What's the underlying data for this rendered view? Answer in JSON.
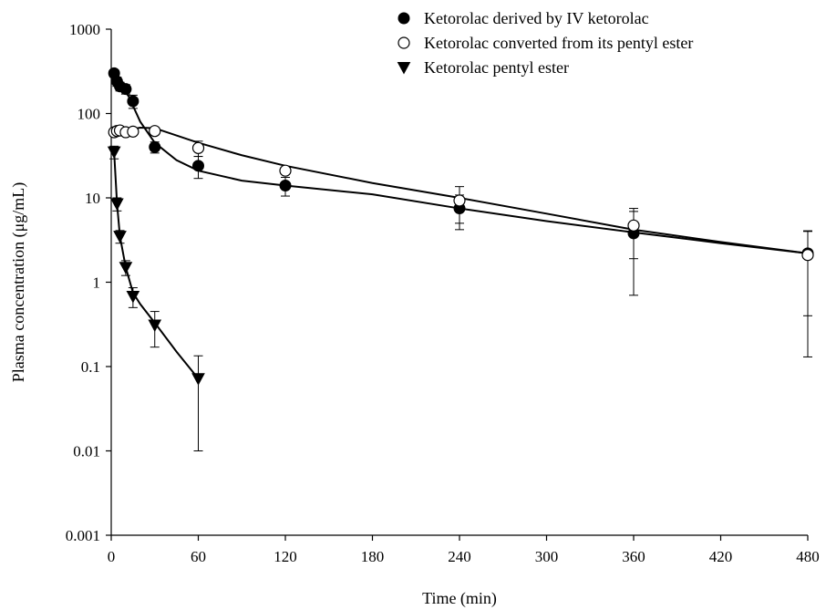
{
  "chart_data": {
    "type": "scatter",
    "xlabel": "Time (min)",
    "ylabel": "Plasma concentration (μg/mL)",
    "x_ticks": [
      0,
      60,
      120,
      180,
      240,
      300,
      360,
      420,
      480
    ],
    "y_ticks": [
      0.001,
      0.01,
      0.1,
      1,
      10,
      100,
      1000
    ],
    "y_tick_labels": [
      "0.001",
      "0.01",
      "0.1",
      "1",
      "10",
      "100",
      "1000"
    ],
    "xlim": [
      0,
      480
    ],
    "ylim": [
      0.001,
      1000
    ],
    "y_scale": "log",
    "grid": false,
    "legend_position": "top-right",
    "series": [
      {
        "name": "Ketorolac derived by IV ketorolac",
        "marker": "filled-circle",
        "color": "#000000",
        "points": [
          {
            "x": 2,
            "y": 300,
            "err": 30
          },
          {
            "x": 4,
            "y": 240,
            "err": 30
          },
          {
            "x": 6,
            "y": 210,
            "err": 25
          },
          {
            "x": 10,
            "y": 195,
            "err": 25
          },
          {
            "x": 15,
            "y": 140,
            "err": 25
          },
          {
            "x": 30,
            "y": 40,
            "err": 6
          },
          {
            "x": 60,
            "y": 24,
            "err": 7
          },
          {
            "x": 120,
            "y": 14,
            "err": 3.5
          },
          {
            "x": 240,
            "y": 7.5,
            "err": 3.3
          },
          {
            "x": 360,
            "y": 3.8,
            "err": 3.1
          },
          {
            "x": 480,
            "y": 2.2,
            "err": 1.8
          }
        ],
        "curve": [
          [
            2,
            300
          ],
          [
            6,
            220
          ],
          [
            12,
            160
          ],
          [
            20,
            80
          ],
          [
            30,
            45
          ],
          [
            45,
            28
          ],
          [
            60,
            21
          ],
          [
            90,
            16
          ],
          [
            120,
            14
          ],
          [
            180,
            11
          ],
          [
            240,
            7.5
          ],
          [
            300,
            5.3
          ],
          [
            360,
            3.9
          ],
          [
            420,
            2.9
          ],
          [
            480,
            2.2
          ]
        ]
      },
      {
        "name": "Ketorolac converted from its pentyl ester",
        "marker": "open-circle",
        "color": "#000000",
        "points": [
          {
            "x": 2,
            "y": 60,
            "err": 4
          },
          {
            "x": 4,
            "y": 62,
            "err": 4
          },
          {
            "x": 6,
            "y": 63,
            "err": 4
          },
          {
            "x": 10,
            "y": 60,
            "err": 4
          },
          {
            "x": 15,
            "y": 61,
            "err": 4
          },
          {
            "x": 30,
            "y": 62,
            "err": 6
          },
          {
            "x": 60,
            "y": 39,
            "err": 8
          },
          {
            "x": 120,
            "y": 21,
            "err": 2
          },
          {
            "x": 240,
            "y": 9.3,
            "err": 4.3
          },
          {
            "x": 360,
            "y": 4.7,
            "err": 2.8
          },
          {
            "x": 480,
            "y": 2.1,
            "err": 1.97
          }
        ],
        "curve": [
          [
            2,
            60
          ],
          [
            10,
            63
          ],
          [
            20,
            68
          ],
          [
            30,
            67
          ],
          [
            60,
            45
          ],
          [
            90,
            32
          ],
          [
            120,
            24
          ],
          [
            180,
            15
          ],
          [
            240,
            10
          ],
          [
            300,
            6.5
          ],
          [
            360,
            4.2
          ],
          [
            420,
            3
          ],
          [
            480,
            2.2
          ]
        ]
      },
      {
        "name": "Ketorolac pentyl ester",
        "marker": "filled-triangle-down",
        "color": "#000000",
        "points": [
          {
            "x": 2,
            "y": 35,
            "err": 6
          },
          {
            "x": 4,
            "y": 8.5,
            "err": 1.5
          },
          {
            "x": 6,
            "y": 3.5,
            "err": 0.6
          },
          {
            "x": 10,
            "y": 1.5,
            "err": 0.3
          },
          {
            "x": 15,
            "y": 0.68,
            "err": 0.18
          },
          {
            "x": 30,
            "y": 0.31,
            "err": 0.14
          },
          {
            "x": 60,
            "y": 0.072,
            "err": 0.062
          }
        ],
        "curve": [
          [
            2,
            35
          ],
          [
            4,
            8.5
          ],
          [
            6,
            3.5
          ],
          [
            10,
            1.5
          ],
          [
            15,
            0.75
          ],
          [
            20,
            0.55
          ],
          [
            30,
            0.33
          ],
          [
            45,
            0.15
          ],
          [
            60,
            0.072
          ]
        ]
      }
    ]
  }
}
